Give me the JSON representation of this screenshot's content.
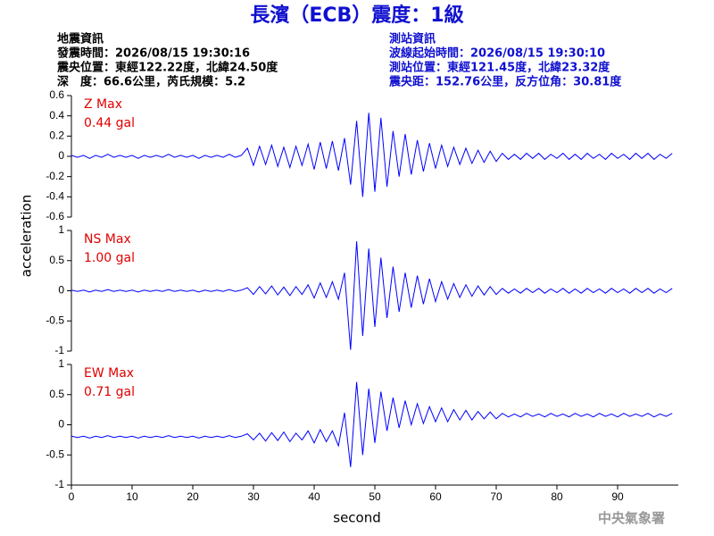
{
  "chart_data": {
    "type": "line",
    "title": "長濱（ECB）震度：1級",
    "info_left": [
      "地震資訊",
      "發震時間：2026/08/15 19:30:16",
      "震央位置：東經122.22度，北緯24.50度",
      "深　度：66.6公里，芮氏規模：5.2"
    ],
    "info_right": [
      "測站資訊",
      "波線起始時間：2026/08/15 19:30:10",
      "測站位置：東經121.45度，北緯23.32度",
      "震央距：152.76公里，反方位角：30.81度"
    ],
    "y_label": "acceleration",
    "x_label": "second",
    "credit": "中央氣象署",
    "xlim": [
      0,
      100
    ],
    "xticks": [
      0,
      10,
      20,
      30,
      40,
      50,
      60,
      70,
      80,
      90
    ],
    "x": [
      0,
      1,
      2,
      3,
      4,
      5,
      6,
      7,
      8,
      9,
      10,
      11,
      12,
      13,
      14,
      15,
      16,
      17,
      18,
      19,
      20,
      21,
      22,
      23,
      24,
      25,
      26,
      27,
      28,
      29,
      30,
      31,
      32,
      33,
      34,
      35,
      36,
      37,
      38,
      39,
      40,
      41,
      42,
      43,
      44,
      45,
      46,
      47,
      48,
      49,
      50,
      51,
      52,
      53,
      54,
      55,
      56,
      57,
      58,
      59,
      60,
      61,
      62,
      63,
      64,
      65,
      66,
      67,
      68,
      69,
      70,
      71,
      72,
      73,
      74,
      75,
      76,
      77,
      78,
      79,
      80,
      81,
      82,
      83,
      84,
      85,
      86,
      87,
      88,
      89,
      90,
      91,
      92,
      93,
      94,
      95,
      96,
      97,
      98,
      99
    ],
    "series": [
      {
        "name": "Z Max",
        "max_label": "0.44 gal",
        "color": "#0000ff",
        "ylim": [
          -0.6,
          0.6
        ],
        "yticks": [
          0.6,
          0.4,
          0.2,
          0,
          -0.2,
          -0.4,
          -0.6
        ],
        "values": [
          0.01,
          -0.01,
          0.01,
          -0.02,
          0.01,
          -0.01,
          0.02,
          -0.01,
          0.01,
          -0.01,
          0.01,
          -0.02,
          0.01,
          -0.01,
          0.01,
          -0.01,
          0.02,
          -0.01,
          0.01,
          -0.01,
          0.01,
          -0.02,
          0.01,
          -0.01,
          0.01,
          -0.01,
          0.02,
          -0.01,
          0.01,
          0.08,
          -0.09,
          0.1,
          -0.08,
          0.11,
          -0.1,
          0.09,
          -0.11,
          0.1,
          -0.09,
          0.12,
          -0.13,
          0.14,
          -0.12,
          0.15,
          -0.14,
          0.18,
          -0.28,
          0.35,
          -0.4,
          0.43,
          -0.35,
          0.38,
          -0.3,
          0.25,
          -0.2,
          0.22,
          -0.18,
          0.16,
          -0.15,
          0.13,
          -0.12,
          0.11,
          -0.1,
          0.09,
          -0.08,
          0.08,
          -0.07,
          0.06,
          -0.06,
          0.05,
          -0.05,
          0.03,
          -0.03,
          0.02,
          -0.03,
          0.03,
          -0.02,
          0.03,
          -0.03,
          0.02,
          -0.02,
          0.03,
          -0.03,
          0.02,
          -0.03,
          0.03,
          -0.02,
          0.02,
          -0.03,
          0.03,
          -0.02,
          0.02,
          -0.03,
          0.03,
          -0.02,
          0.03,
          -0.03,
          0.02,
          -0.02,
          0.03
        ]
      },
      {
        "name": "NS Max",
        "max_label": "1.00 gal",
        "color": "#0000ff",
        "ylim": [
          -1,
          1
        ],
        "yticks": [
          1,
          0.5,
          0,
          -0.5,
          -1
        ],
        "values": [
          0.01,
          -0.01,
          0.01,
          -0.02,
          0.01,
          -0.01,
          0.02,
          -0.01,
          0.01,
          -0.01,
          0.01,
          -0.02,
          0.01,
          -0.01,
          0.01,
          -0.01,
          0.02,
          -0.01,
          0.01,
          -0.01,
          0.01,
          -0.02,
          0.01,
          -0.01,
          0.01,
          -0.01,
          0.02,
          -0.01,
          0.01,
          0.05,
          -0.06,
          0.07,
          -0.05,
          0.08,
          -0.07,
          0.06,
          -0.08,
          0.07,
          -0.06,
          0.1,
          -0.12,
          0.13,
          -0.11,
          0.15,
          -0.14,
          0.3,
          -0.98,
          0.82,
          -0.75,
          0.7,
          -0.6,
          0.55,
          -0.45,
          0.4,
          -0.35,
          0.3,
          -0.28,
          0.25,
          -0.22,
          0.2,
          -0.18,
          0.15,
          -0.14,
          0.12,
          -0.11,
          0.1,
          -0.09,
          0.08,
          -0.07,
          0.07,
          -0.06,
          0.04,
          -0.04,
          0.03,
          -0.04,
          0.04,
          -0.03,
          0.04,
          -0.04,
          0.03,
          -0.03,
          0.04,
          -0.04,
          0.03,
          -0.04,
          0.04,
          -0.03,
          0.03,
          -0.04,
          0.04,
          -0.03,
          0.03,
          -0.04,
          0.04,
          -0.03,
          0.04,
          -0.04,
          0.03,
          -0.03,
          0.04
        ]
      },
      {
        "name": "EW Max",
        "max_label": "0.71 gal",
        "color": "#0000ff",
        "ylim": [
          -1,
          1
        ],
        "yticks": [
          1,
          0.5,
          0,
          -0.5,
          -1
        ],
        "values": [
          -0.19,
          -0.21,
          -0.19,
          -0.22,
          -0.19,
          -0.21,
          -0.18,
          -0.21,
          -0.19,
          -0.21,
          -0.19,
          -0.22,
          -0.19,
          -0.21,
          -0.19,
          -0.21,
          -0.18,
          -0.21,
          -0.19,
          -0.21,
          -0.19,
          -0.22,
          -0.19,
          -0.21,
          -0.19,
          -0.21,
          -0.18,
          -0.21,
          -0.19,
          -0.15,
          -0.25,
          -0.14,
          -0.27,
          -0.13,
          -0.26,
          -0.12,
          -0.28,
          -0.14,
          -0.25,
          -0.1,
          -0.3,
          -0.08,
          -0.28,
          -0.1,
          -0.35,
          0.2,
          -0.7,
          0.71,
          -0.5,
          0.6,
          -0.3,
          0.55,
          -0.1,
          0.45,
          -0.05,
          0.4,
          0.0,
          0.35,
          0.02,
          0.3,
          0.05,
          0.28,
          0.05,
          0.25,
          0.08,
          0.24,
          0.08,
          0.22,
          0.1,
          0.21,
          0.1,
          0.19,
          0.13,
          0.18,
          0.13,
          0.19,
          0.14,
          0.18,
          0.13,
          0.19,
          0.14,
          0.18,
          0.13,
          0.19,
          0.14,
          0.18,
          0.13,
          0.19,
          0.14,
          0.18,
          0.13,
          0.19,
          0.14,
          0.18,
          0.14,
          0.19,
          0.13,
          0.18,
          0.14,
          0.19
        ]
      }
    ]
  }
}
